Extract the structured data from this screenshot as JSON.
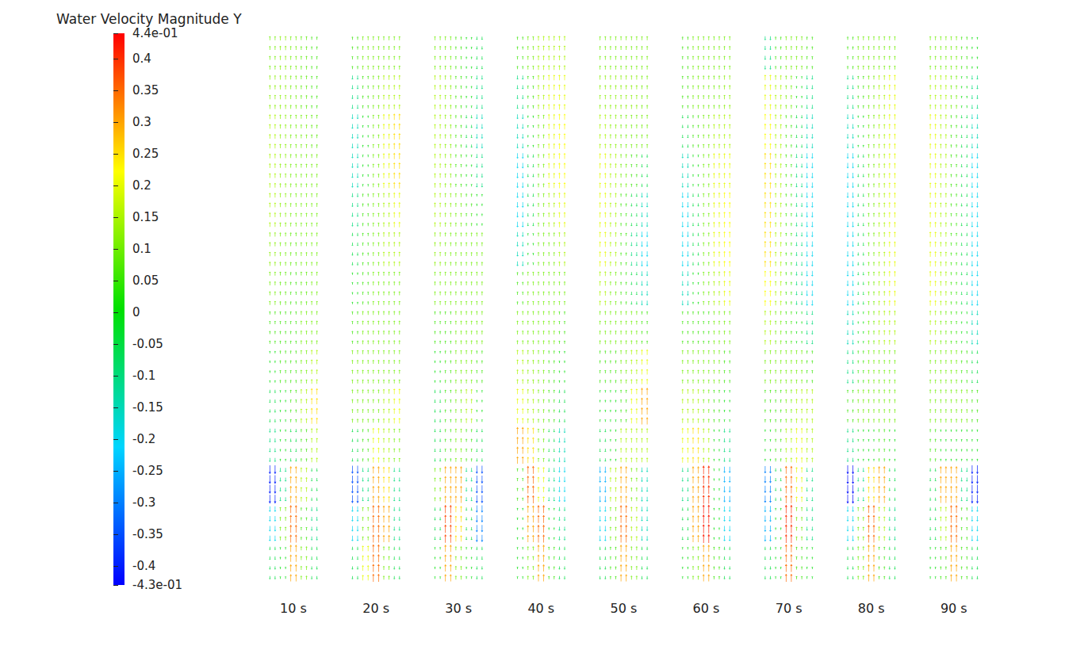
{
  "chart_data": {
    "type": "vector_field",
    "colorbar": {
      "title": "Water Velocity Magnitude Y",
      "range": [
        -0.43,
        0.44
      ],
      "ticks": [
        {
          "value": 0.44,
          "label": "4.4e-01"
        },
        0.4,
        0.35,
        0.3,
        0.25,
        0.2,
        0.15,
        0.1,
        0.05,
        0,
        -0.05,
        -0.1,
        -0.15,
        -0.2,
        -0.25,
        -0.3,
        -0.35,
        -0.4,
        {
          "value": -0.43,
          "label": "-4.3e-01"
        }
      ]
    },
    "panels": [
      {
        "label": "10 s",
        "values": [
          [
            0.1,
            0.12,
            0.1,
            0.08,
            0.05
          ],
          [
            0.12,
            0.12,
            0.1,
            0.08,
            0.05
          ],
          [
            0.15,
            0.12,
            0.1,
            0.1,
            0.08
          ],
          [
            0.15,
            0.12,
            0.1,
            0.1,
            0.1
          ],
          [
            0.15,
            0.12,
            0.1,
            0.1,
            0.1
          ],
          [
            0.12,
            0.1,
            0.08,
            0.1,
            0.1
          ],
          [
            0.1,
            0.08,
            0.05,
            0.08,
            0.1
          ],
          [
            0.05,
            0.05,
            0.05,
            0.1,
            0.1
          ],
          [
            0,
            0.05,
            0.05,
            0.1,
            0.15
          ],
          [
            -0.05,
            0,
            0.05,
            0.15,
            0.25
          ],
          [
            -0.1,
            0,
            -0.05,
            0.05,
            0.15
          ],
          [
            -0.4,
            -0.1,
            0.3,
            0.15,
            -0.05
          ],
          [
            -0.2,
            0.1,
            0.35,
            0.05,
            -0.1
          ],
          [
            -0.05,
            0,
            0.3,
            0.1,
            -0.05
          ]
        ]
      },
      {
        "label": "20 s",
        "values": [
          [
            0.05,
            0.1,
            0.1,
            0.1,
            0.1
          ],
          [
            -0.1,
            0.05,
            0.1,
            0.15,
            0.15
          ],
          [
            -0.15,
            0,
            0.1,
            0.2,
            0.25
          ],
          [
            -0.15,
            0,
            0.1,
            0.2,
            0.25
          ],
          [
            -0.1,
            0.05,
            0.1,
            0.15,
            0.2
          ],
          [
            -0.05,
            0.05,
            0.1,
            0.15,
            0.15
          ],
          [
            0,
            0.05,
            0.1,
            0.1,
            0.1
          ],
          [
            0.05,
            0.1,
            0.1,
            0.1,
            0.1
          ],
          [
            0.1,
            0.1,
            0.1,
            0.1,
            0.1
          ],
          [
            0.1,
            0.1,
            0.1,
            0.15,
            0.2
          ],
          [
            -0.05,
            0.05,
            0.2,
            0.15,
            0.1
          ],
          [
            -0.35,
            -0.1,
            0.3,
            0.25,
            -0.1
          ],
          [
            -0.2,
            0.1,
            0.35,
            0.3,
            -0.1
          ],
          [
            -0.05,
            0.2,
            0.35,
            0.1,
            -0.05
          ]
        ]
      },
      {
        "label": "30 s",
        "values": [
          [
            0.1,
            0.1,
            0.05,
            0,
            -0.05
          ],
          [
            0.15,
            0.12,
            0.05,
            0,
            -0.1
          ],
          [
            0.15,
            0.12,
            0.05,
            -0.05,
            -0.15
          ],
          [
            0.15,
            0.12,
            0.05,
            0,
            -0.1
          ],
          [
            0.15,
            0.12,
            0.1,
            0.05,
            0
          ],
          [
            0.12,
            0.1,
            0.1,
            0.1,
            0.1
          ],
          [
            0.1,
            0.1,
            0.1,
            0.1,
            0.1
          ],
          [
            0.05,
            0.05,
            0.1,
            0.1,
            0.1
          ],
          [
            0,
            0.05,
            0.1,
            0.1,
            0.05
          ],
          [
            -0.05,
            0.05,
            0.1,
            0.15,
            0
          ],
          [
            -0.05,
            0.05,
            0.1,
            0.05,
            -0.05
          ],
          [
            0.1,
            0.3,
            0.3,
            -0.1,
            -0.35
          ],
          [
            -0.05,
            0.38,
            0.25,
            -0.05,
            -0.3
          ],
          [
            0,
            0.3,
            0.1,
            0,
            -0.05
          ]
        ]
      },
      {
        "label": "40 s",
        "values": [
          [
            0.05,
            0.1,
            0.15,
            0.15,
            0.15
          ],
          [
            -0.1,
            0.05,
            0.15,
            0.2,
            0.2
          ],
          [
            -0.15,
            0,
            0.1,
            0.2,
            0.22
          ],
          [
            -0.2,
            -0.05,
            0.1,
            0.2,
            0.22
          ],
          [
            -0.2,
            -0.05,
            0.1,
            0.15,
            0.2
          ],
          [
            -0.15,
            0,
            0.1,
            0.1,
            0.15
          ],
          [
            0.05,
            0.1,
            0.1,
            0.1,
            0.1
          ],
          [
            0.1,
            0.1,
            0.1,
            0.1,
            0.05
          ],
          [
            0.15,
            0.12,
            0.1,
            0.05,
            0
          ],
          [
            0.2,
            0.15,
            0.1,
            0.05,
            -0.05
          ],
          [
            0.3,
            0.25,
            0.1,
            -0.05,
            -0.15
          ],
          [
            0.05,
            0.35,
            0.2,
            -0.1,
            -0.2
          ],
          [
            0,
            0.3,
            0.35,
            0,
            -0.1
          ],
          [
            0,
            0.1,
            0.3,
            0.05,
            -0.05
          ]
        ]
      },
      {
        "label": "50 s",
        "values": [
          [
            0.1,
            0.1,
            0.1,
            0.1,
            0.1
          ],
          [
            0.12,
            0.12,
            0.12,
            0.12,
            0.1
          ],
          [
            0.15,
            0.12,
            0.1,
            0.1,
            0.1
          ],
          [
            0.2,
            0.15,
            0.1,
            0.05,
            -0.05
          ],
          [
            0.2,
            0.15,
            0.05,
            -0.05,
            -0.15
          ],
          [
            0.2,
            0.15,
            0.05,
            -0.1,
            -0.2
          ],
          [
            0.15,
            0.1,
            0.05,
            -0.05,
            -0.15
          ],
          [
            0.1,
            0.1,
            0.1,
            0.1,
            0.05
          ],
          [
            0.05,
            0.05,
            0.1,
            0.15,
            0.2
          ],
          [
            0,
            0,
            0.05,
            0.2,
            0.3
          ],
          [
            -0.05,
            0,
            0.15,
            0.15,
            0.15
          ],
          [
            -0.25,
            0.15,
            0.3,
            0.1,
            -0.15
          ],
          [
            -0.2,
            0.1,
            0.35,
            0.15,
            -0.15
          ],
          [
            -0.05,
            0.05,
            0.3,
            0.1,
            -0.05
          ]
        ]
      },
      {
        "label": "60 s",
        "values": [
          [
            0.05,
            0.1,
            0.1,
            0.1,
            0.1
          ],
          [
            0.05,
            0.1,
            0.1,
            0.1,
            0.12
          ],
          [
            -0.05,
            0.05,
            0.1,
            0.15,
            0.15
          ],
          [
            -0.15,
            0,
            0.1,
            0.2,
            0.2
          ],
          [
            -0.2,
            -0.05,
            0.1,
            0.2,
            0.22
          ],
          [
            -0.2,
            -0.05,
            0.1,
            0.2,
            0.22
          ],
          [
            -0.15,
            0,
            0.1,
            0.15,
            0.2
          ],
          [
            0.05,
            0.05,
            0.05,
            0.1,
            0.1
          ],
          [
            0.1,
            0.1,
            0.1,
            0.1,
            0.05
          ],
          [
            0.15,
            0.15,
            0.1,
            0.05,
            0
          ],
          [
            0.2,
            0.25,
            0.15,
            0,
            -0.1
          ],
          [
            -0.1,
            0.3,
            0.4,
            0,
            -0.25
          ],
          [
            -0.05,
            0.3,
            0.42,
            0,
            -0.2
          ],
          [
            0,
            0.1,
            0.3,
            0.05,
            -0.05
          ]
        ]
      },
      {
        "label": "70 s",
        "values": [
          [
            -0.1,
            0.05,
            0.1,
            0.1,
            0.05
          ],
          [
            0.2,
            0.15,
            0.1,
            0,
            -0.1
          ],
          [
            0.22,
            0.15,
            0.05,
            -0.05,
            -0.15
          ],
          [
            0.25,
            0.15,
            0.05,
            -0.1,
            -0.2
          ],
          [
            0.25,
            0.15,
            0.05,
            -0.1,
            -0.2
          ],
          [
            0.25,
            0.15,
            0.05,
            -0.1,
            -0.2
          ],
          [
            0.22,
            0.15,
            0.05,
            -0.1,
            -0.2
          ],
          [
            0.15,
            0.1,
            0.05,
            0,
            -0.1
          ],
          [
            0.1,
            0.1,
            0.1,
            0.1,
            0.05
          ],
          [
            0.05,
            0.05,
            0.1,
            0.15,
            0.15
          ],
          [
            0,
            0.05,
            0.15,
            0.2,
            0.15
          ],
          [
            -0.3,
            -0.05,
            0.35,
            0.2,
            -0.1
          ],
          [
            -0.25,
            0,
            0.4,
            0.1,
            -0.1
          ],
          [
            -0.05,
            0,
            0.35,
            0.05,
            0
          ]
        ]
      },
      {
        "label": "80 s",
        "values": [
          [
            0.05,
            0.1,
            0.1,
            0.1,
            0.1
          ],
          [
            -0.1,
            0.05,
            0.1,
            0.15,
            0.2
          ],
          [
            -0.15,
            0,
            0.1,
            0.15,
            0.2
          ],
          [
            -0.2,
            -0.05,
            0.1,
            0.15,
            0.2
          ],
          [
            -0.2,
            -0.05,
            0.1,
            0.15,
            0.2
          ],
          [
            -0.2,
            -0.05,
            0.1,
            0.15,
            0.2
          ],
          [
            -0.2,
            -0.05,
            0.1,
            0.15,
            0.2
          ],
          [
            -0.15,
            0,
            0.1,
            0.15,
            0.15
          ],
          [
            -0.1,
            0.05,
            0.1,
            0.1,
            0.1
          ],
          [
            0.05,
            0.1,
            0.1,
            0.1,
            0.1
          ],
          [
            -0.1,
            0,
            0,
            0.05,
            0
          ],
          [
            -0.42,
            -0.1,
            0.25,
            0.3,
            -0.05
          ],
          [
            -0.2,
            0.1,
            0.35,
            0.15,
            -0.1
          ],
          [
            -0.05,
            0.1,
            0.3,
            0.05,
            -0.05
          ]
        ]
      },
      {
        "label": "90 s",
        "values": [
          [
            0.1,
            0.1,
            0.1,
            0.05,
            0
          ],
          [
            0.15,
            0.15,
            0.1,
            0,
            -0.1
          ],
          [
            0.2,
            0.15,
            0.05,
            -0.05,
            -0.15
          ],
          [
            0.2,
            0.15,
            0.05,
            -0.05,
            -0.2
          ],
          [
            0.2,
            0.15,
            0.05,
            -0.05,
            -0.2
          ],
          [
            0.2,
            0.15,
            0.05,
            -0.05,
            -0.2
          ],
          [
            0.2,
            0.15,
            0.05,
            -0.05,
            -0.2
          ],
          [
            0.15,
            0.1,
            0.05,
            0,
            -0.15
          ],
          [
            0.1,
            0.1,
            0.1,
            0.05,
            -0.05
          ],
          [
            0.1,
            0.1,
            0.1,
            0.1,
            0.05
          ],
          [
            0.05,
            0,
            0,
            0,
            0
          ],
          [
            -0.05,
            0.3,
            0.3,
            -0.1,
            -0.4
          ],
          [
            -0.05,
            0.15,
            0.35,
            0.05,
            -0.2
          ],
          [
            0,
            0.05,
            0.3,
            0.05,
            -0.05
          ]
        ]
      }
    ]
  }
}
